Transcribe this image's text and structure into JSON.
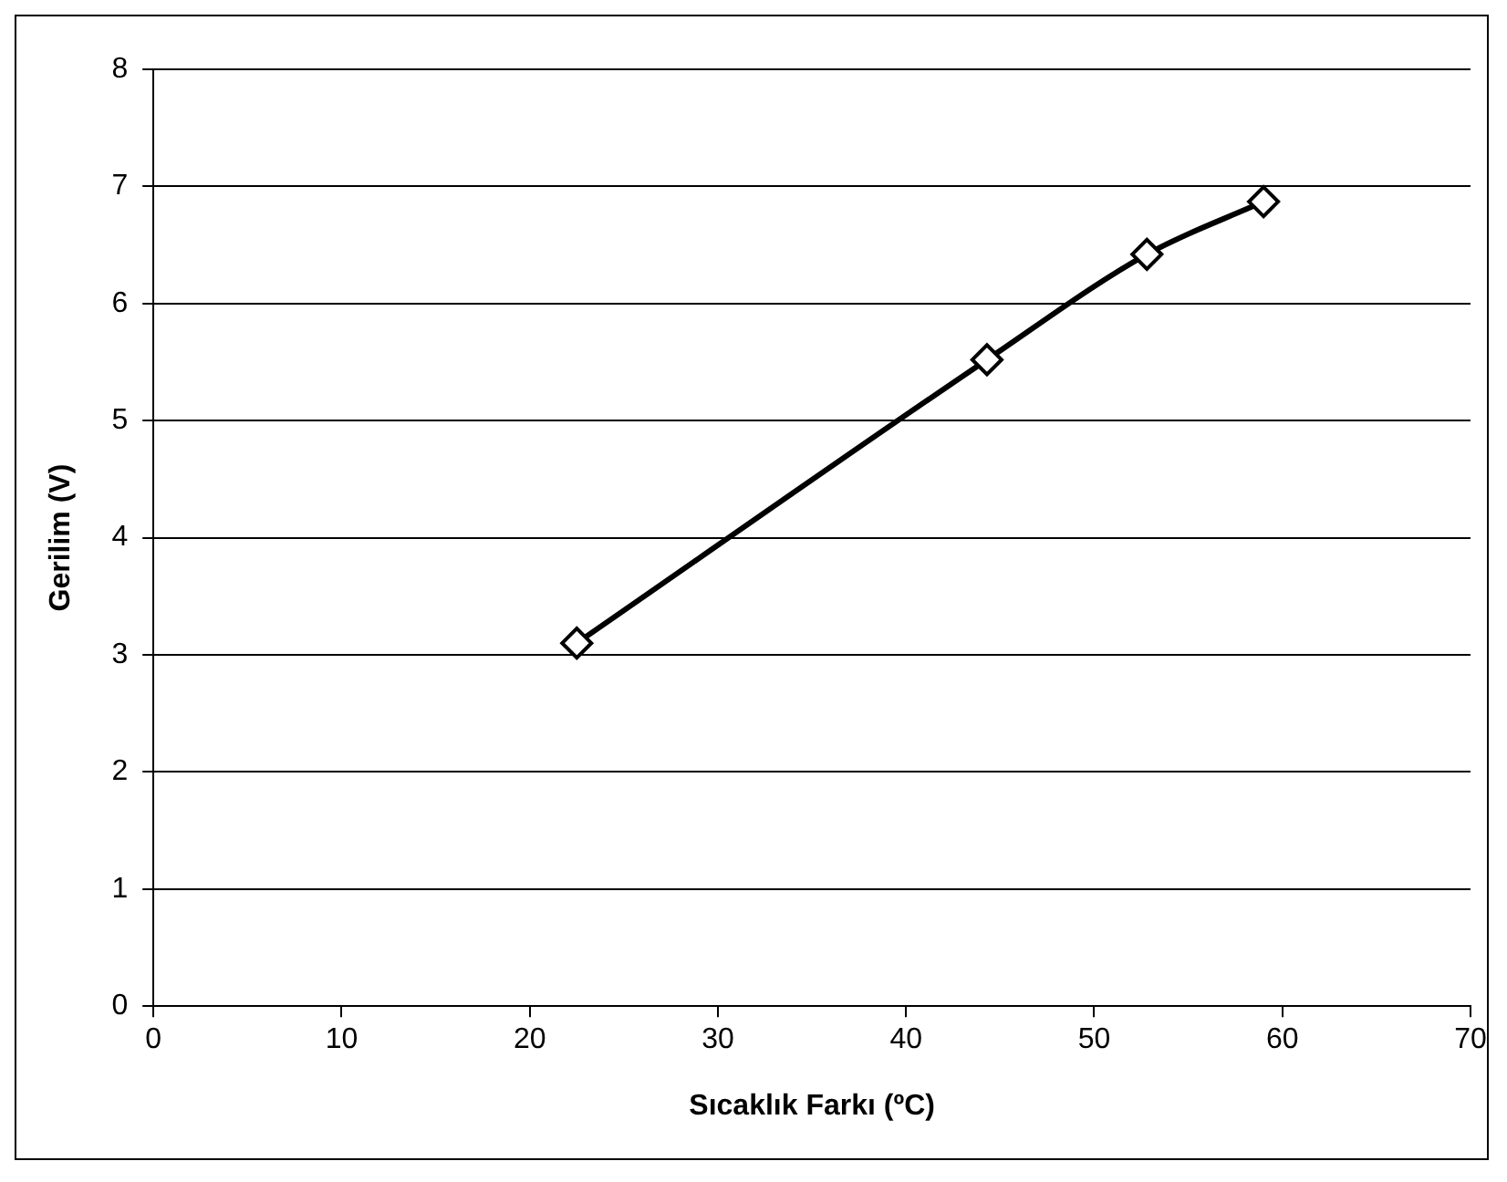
{
  "chart_data": {
    "type": "line",
    "xlabel": "Sıcaklık Farkı (ºC)",
    "ylabel": "Gerilim (V)",
    "x": [
      22.5,
      44.3,
      52.8,
      59.0
    ],
    "series": [
      {
        "color": "#000000",
        "values": [
          3.1,
          5.52,
          6.42,
          6.87
        ]
      }
    ],
    "xlim": [
      0,
      70
    ],
    "xticks": [
      0,
      10,
      20,
      30,
      40,
      50,
      60,
      70
    ],
    "ylim": [
      0,
      8
    ],
    "yticks": [
      0,
      1,
      2,
      3,
      4,
      5,
      6,
      7,
      8
    ],
    "grid": "y",
    "legend": false,
    "marker": "diamond",
    "line_style": "solid"
  }
}
